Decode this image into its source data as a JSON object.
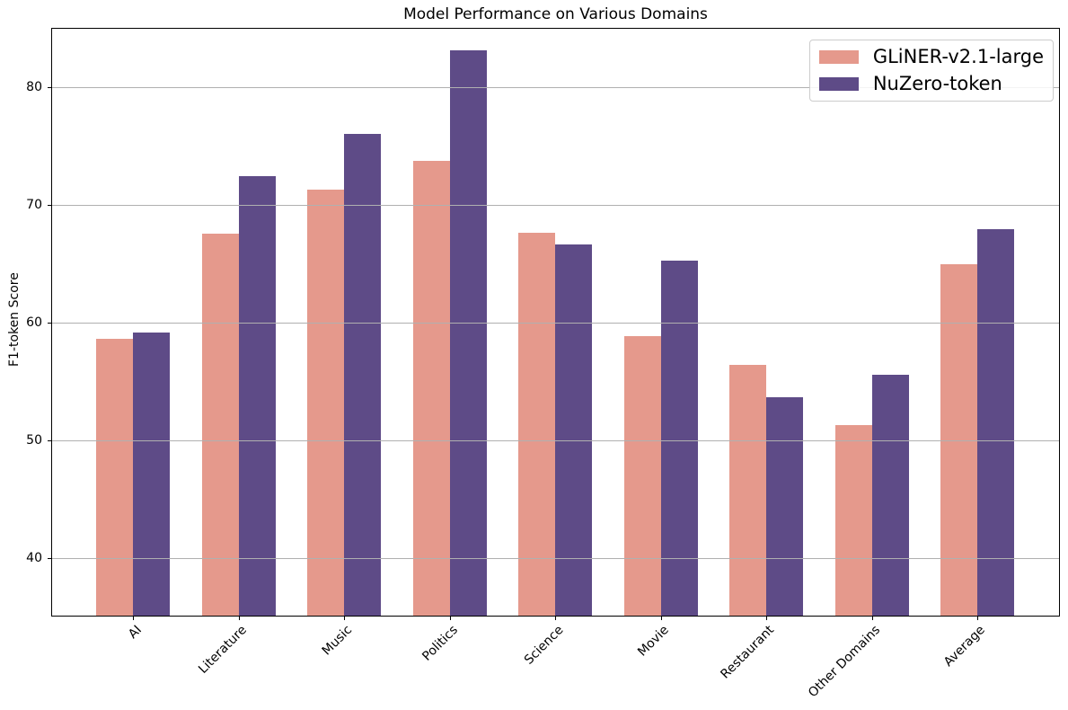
{
  "chart_data": {
    "type": "bar",
    "title": "Model Performance on Various Domains",
    "xlabel": "",
    "ylabel": "F1-token Score",
    "categories": [
      "AI",
      "Literature",
      "Music",
      "Politics",
      "Science",
      "Movie",
      "Restaurant",
      "Other Domains",
      "Average"
    ],
    "series": [
      {
        "name": "GLiNER-v2.1-large",
        "color": "#e5998c",
        "values": [
          58.6,
          67.5,
          71.3,
          73.7,
          67.6,
          58.8,
          56.4,
          51.3,
          64.9
        ]
      },
      {
        "name": "NuZero-token",
        "color": "#5e4b87",
        "values": [
          59.1,
          72.4,
          76.0,
          83.1,
          66.6,
          65.2,
          53.6,
          55.5,
          67.9
        ]
      }
    ],
    "ylim": [
      35,
      85
    ],
    "yticks": [
      40,
      50,
      60,
      70,
      80
    ],
    "grid": "horizontal",
    "grid_color": "#b0b0b0",
    "legend_position": "upper right",
    "x_tick_rotation": 45
  }
}
